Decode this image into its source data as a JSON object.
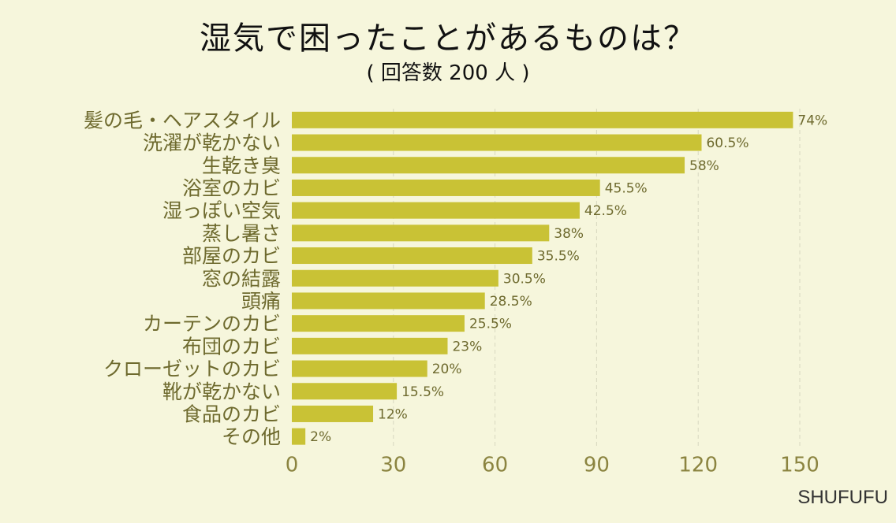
{
  "title": "湿気で困ったことがあるものは？",
  "subtitle": "( 回答数 200 人 )",
  "brand": "SHUFUFU",
  "colors": {
    "background": "#f6f6dc",
    "bar": "#c9c235",
    "label_text": "#6e6a2e",
    "tick_text": "#8b8440",
    "grid": "#d8d8c0"
  },
  "chart_data": {
    "type": "bar",
    "orientation": "horizontal",
    "categories": [
      "髪の毛・ヘアスタイル",
      "洗濯が乾かない",
      "生乾き臭",
      "浴室のカビ",
      "湿っぽい空気",
      "蒸し暑さ",
      "部屋のカビ",
      "窓の結露",
      "頭痛",
      "カーテンのカビ",
      "布団のカビ",
      "クローゼットのカビ",
      "靴が乾かない",
      "食品のカビ",
      "その他"
    ],
    "values": [
      148,
      121,
      116,
      91,
      85,
      76,
      71,
      61,
      57,
      51,
      46,
      40,
      31,
      24,
      4
    ],
    "data_labels": [
      "74%",
      "60.5%",
      "58%",
      "45.5%",
      "42.5%",
      "38%",
      "35.5%",
      "30.5%",
      "28.5%",
      "25.5%",
      "23%",
      "20%",
      "15.5%",
      "12%",
      "2%"
    ],
    "xlim": [
      0,
      150
    ],
    "xticks": [
      "0",
      "30",
      "60",
      "90",
      "120",
      "150"
    ],
    "grid": "vertical dashed",
    "legend": "none"
  }
}
